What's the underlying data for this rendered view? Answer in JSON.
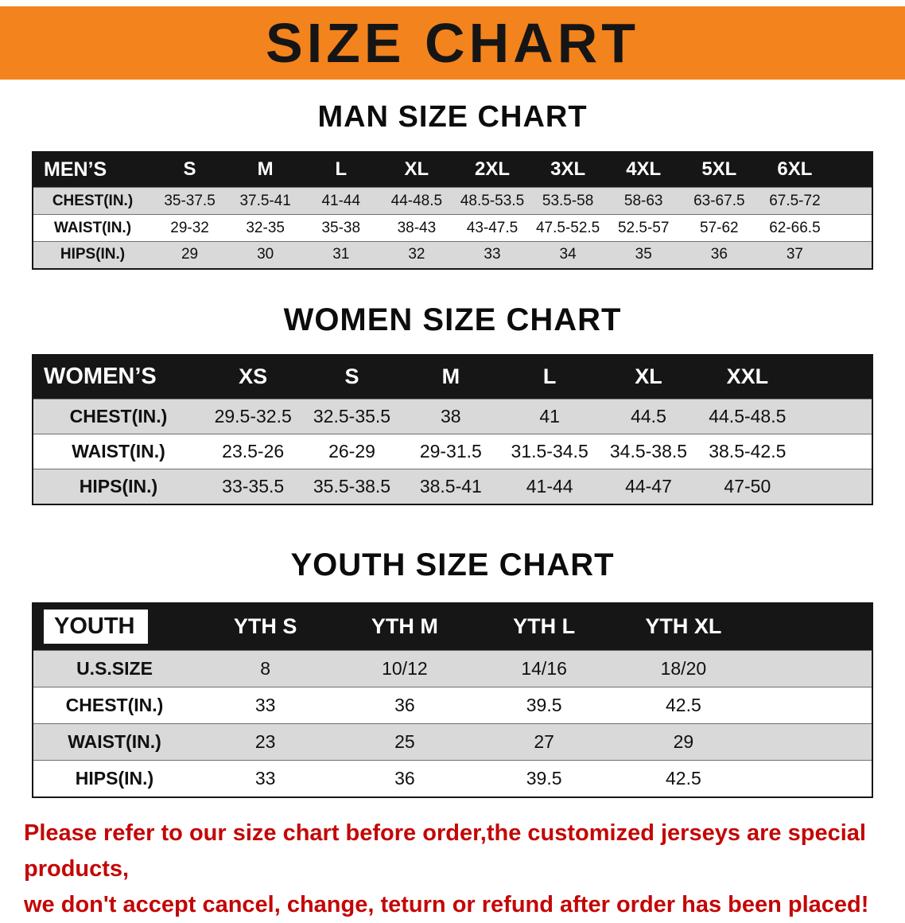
{
  "banner": {
    "title": "SIZE CHART",
    "background_color": "#F3831D",
    "text_color": "#151515"
  },
  "sections": [
    {
      "heading": "MAN SIZE CHART",
      "table": {
        "corner_label": "MEN’S",
        "corner_highlight": false,
        "columns": [
          "S",
          "M",
          "L",
          "XL",
          "2XL",
          "3XL",
          "4XL",
          "5XL",
          "6XL"
        ],
        "rows": [
          {
            "label": "CHEST(IN.)",
            "values": [
              "35-37.5",
              "37.5-41",
              "41-44",
              "44-48.5",
              "48.5-53.5",
              "53.5-58",
              "58-63",
              "63-67.5",
              "67.5-72"
            ]
          },
          {
            "label": "WAIST(IN.)",
            "values": [
              "29-32",
              "32-35",
              "35-38",
              "38-43",
              "43-47.5",
              "47.5-52.5",
              "52.5-57",
              "57-62",
              "62-66.5"
            ]
          },
          {
            "label": "HIPS(IN.)",
            "values": [
              "29",
              "30",
              "31",
              "32",
              "33",
              "34",
              "35",
              "36",
              "37"
            ]
          }
        ]
      }
    },
    {
      "heading": "WOMEN SIZE CHART",
      "table": {
        "corner_label": "WOMEN’S",
        "corner_highlight": false,
        "columns": [
          "XS",
          "S",
          "M",
          "L",
          "XL",
          "XXL"
        ],
        "rows": [
          {
            "label": "CHEST(IN.)",
            "values": [
              "29.5-32.5",
              "32.5-35.5",
              "38",
              "41",
              "44.5",
              "44.5-48.5"
            ]
          },
          {
            "label": "WAIST(IN.)",
            "values": [
              "23.5-26",
              "26-29",
              "29-31.5",
              "31.5-34.5",
              "34.5-38.5",
              "38.5-42.5"
            ]
          },
          {
            "label": "HIPS(IN.)",
            "values": [
              "33-35.5",
              "35.5-38.5",
              "38.5-41",
              "41-44",
              "44-47",
              "47-50"
            ]
          }
        ]
      }
    },
    {
      "heading": "YOUTH SIZE CHART",
      "table": {
        "corner_label": "YOUTH",
        "corner_highlight": true,
        "columns": [
          "YTH S",
          "YTH M",
          "YTH L",
          "YTH XL"
        ],
        "rows": [
          {
            "label": "U.S.SIZE",
            "values": [
              "8",
              "10/12",
              "14/16",
              "18/20"
            ]
          },
          {
            "label": "CHEST(IN.)",
            "values": [
              "33",
              "36",
              "39.5",
              "42.5"
            ]
          },
          {
            "label": "WAIST(IN.)",
            "values": [
              "23",
              "25",
              "27",
              "29"
            ]
          },
          {
            "label": "HIPS(IN.)",
            "values": [
              "33",
              "36",
              "39.5",
              "42.5"
            ]
          }
        ]
      }
    }
  ],
  "disclaimer": {
    "line1": "Please refer to our size chart before order,the customized jerseys are special products,",
    "line2": "we don't accept cancel, change, teturn or refund after order has been placed!",
    "color": "#C40606"
  }
}
